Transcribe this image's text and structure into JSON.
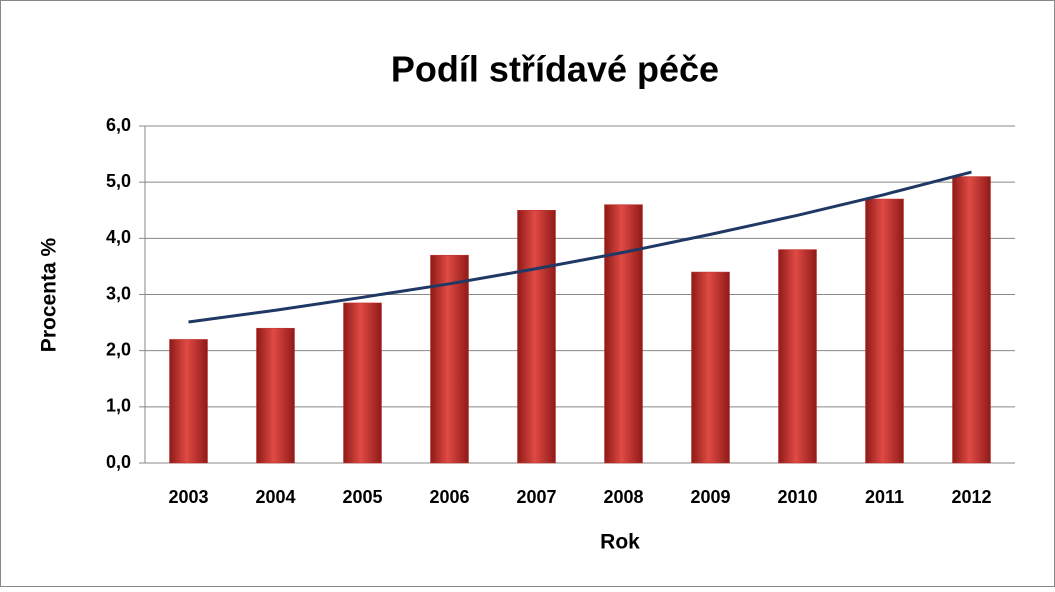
{
  "chart_data": {
    "type": "bar",
    "title": "Podíl střídavé péče",
    "x_label": "Rok",
    "y_label": "Procenta %",
    "categories": [
      "2003",
      "2004",
      "2005",
      "2006",
      "2007",
      "2008",
      "2009",
      "2010",
      "2011",
      "2012"
    ],
    "values": [
      2.2,
      2.4,
      2.85,
      3.7,
      4.5,
      4.6,
      3.4,
      3.8,
      4.7,
      5.1
    ],
    "color": "#c0302c",
    "trendline": {
      "color": "#1f3864",
      "values": [
        2.51,
        2.72,
        2.95,
        3.19,
        3.46,
        3.75,
        4.07,
        4.41,
        4.78,
        5.18
      ]
    },
    "ylim": [
      0,
      6
    ],
    "yticks": [
      {
        "value": 0,
        "label": "0,0"
      },
      {
        "value": 1,
        "label": "1,0"
      },
      {
        "value": 2,
        "label": "2,0"
      },
      {
        "value": 3,
        "label": "3,0"
      },
      {
        "value": 4,
        "label": "4,0"
      },
      {
        "value": 5,
        "label": "5,0"
      },
      {
        "value": 6,
        "label": "6,0"
      }
    ],
    "grid": true
  }
}
